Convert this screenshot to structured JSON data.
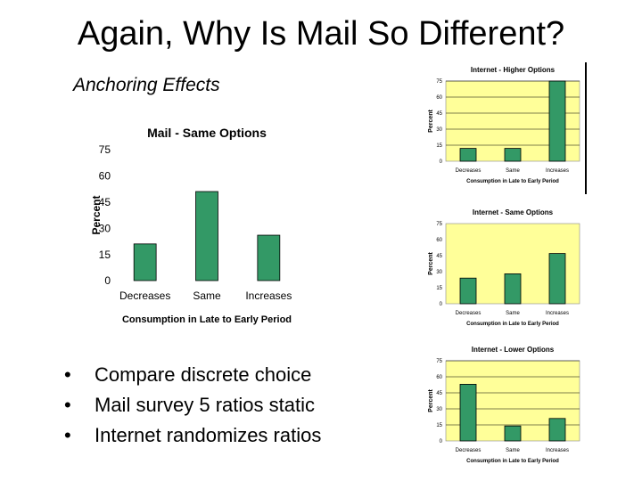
{
  "slide": {
    "title": "Again, Why Is Mail So Different?",
    "subtitle": "Anchoring Effects",
    "bullets": [
      "Compare discrete choice",
      "Mail survey 5 ratios static",
      "Internet randomizes ratios"
    ]
  },
  "colors": {
    "plot_bg": "#ffff99",
    "bar": "#339966",
    "bar_edge": "#000000"
  },
  "chart_data": [
    {
      "id": "mail",
      "type": "bar",
      "title": "Mail - Same Options",
      "categories": [
        "Decreases",
        "Same",
        "Increases"
      ],
      "values": [
        21,
        51,
        26
      ],
      "xlabel": "Consumption in Late to Early Period",
      "ylabel": "Percent",
      "ylim": [
        0,
        75
      ],
      "yticks": [
        0,
        15,
        30,
        45,
        60,
        75
      ],
      "plot_background": false,
      "grid": false
    },
    {
      "id": "internet-higher",
      "type": "bar",
      "title": "Internet - Higher Options",
      "categories": [
        "Decreases",
        "Same",
        "Increases"
      ],
      "values": [
        12,
        12,
        75
      ],
      "xlabel": "Consumption in Late to Early Period",
      "ylabel": "Percent",
      "ylim": [
        0,
        75
      ],
      "yticks": [
        0,
        15,
        30,
        45,
        60,
        75
      ],
      "plot_background": true,
      "grid": true
    },
    {
      "id": "internet-same",
      "type": "bar",
      "title": "Internet - Same Options",
      "categories": [
        "Decreases",
        "Same",
        "Increases"
      ],
      "values": [
        24,
        28,
        47
      ],
      "xlabel": "Consumption in Late to Early Period",
      "ylabel": "Percent",
      "ylim": [
        0,
        75
      ],
      "yticks": [
        0,
        15,
        30,
        45,
        60,
        75
      ],
      "plot_background": true,
      "grid": false
    },
    {
      "id": "internet-lower",
      "type": "bar",
      "title": "Internet - Lower Options",
      "categories": [
        "Decreases",
        "Same",
        "Increases"
      ],
      "values": [
        53,
        14,
        21
      ],
      "xlabel": "Consumption in Late to Early Period",
      "ylabel": "Percent",
      "ylim": [
        0,
        75
      ],
      "yticks": [
        0,
        15,
        30,
        45,
        60,
        75
      ],
      "plot_background": true,
      "grid": true
    }
  ]
}
